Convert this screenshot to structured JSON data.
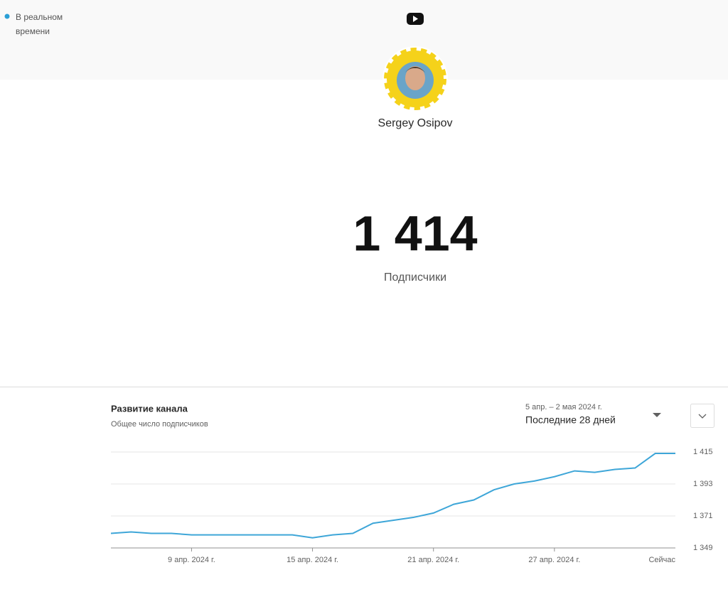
{
  "header": {
    "status": "В реальном времени"
  },
  "channel": {
    "name": "Sergey Osipov",
    "count": "1 414",
    "count_label": "Подписчики"
  },
  "chart_data": {
    "type": "line",
    "title": "Развитие канала",
    "subtitle": "Общее число подписчиков",
    "date_range": "5 апр. – 2 мая 2024 г.",
    "period": "Последние 28 дней",
    "categories": [
      null,
      null,
      null,
      null,
      "9 апр. 2024 г.",
      null,
      null,
      null,
      null,
      null,
      "15 апр. 2024 г.",
      null,
      null,
      null,
      null,
      null,
      "21 апр. 2024 г.",
      null,
      null,
      null,
      null,
      null,
      "27 апр. 2024 г.",
      null,
      null,
      null,
      null,
      null,
      "Сейчас"
    ],
    "series": [
      {
        "name": "Подписчики",
        "color": "#3ea6d8",
        "values": [
          1359,
          1360,
          1359,
          1359,
          1358,
          1358,
          1358,
          1358,
          1358,
          1358,
          1356,
          1358,
          1359,
          1366,
          1368,
          1370,
          1373,
          1379,
          1382,
          1389,
          1393,
          1395,
          1398,
          1402,
          1401,
          1403,
          1404,
          1414,
          1414
        ]
      }
    ],
    "ylim": [
      1349,
      1415
    ],
    "yticks": [
      {
        "value": 1349,
        "label": "1 349"
      },
      {
        "value": 1371,
        "label": "1 371"
      },
      {
        "value": 1393,
        "label": "1 393"
      },
      {
        "value": 1415,
        "label": "1 415"
      }
    ],
    "grid": true
  }
}
